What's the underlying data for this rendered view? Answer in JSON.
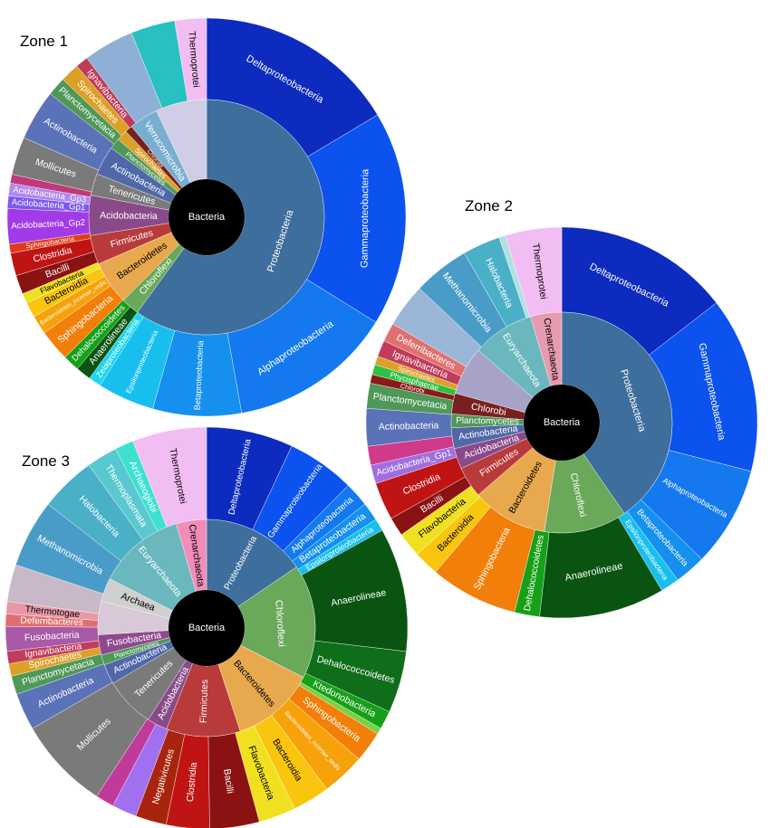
{
  "chart_data": [
    {
      "type": "sunburst",
      "title": "Zone 1",
      "root": "Bacteria",
      "inner": [
        {
          "label": "Proteobacteria",
          "value": 60.0,
          "color": "#3d6e9c"
        },
        {
          "label": "Chloroflexi",
          "value": 2.5,
          "color": "#6aa85a"
        },
        {
          "label": "Bacteroidetes",
          "value": 6.0,
          "color": "#e8a94e"
        },
        {
          "label": "Firmicutes",
          "value": 4.0,
          "color": "#b83a3a"
        },
        {
          "label": "Acidobacteria",
          "value": 5.5,
          "color": "#8a4a8a"
        },
        {
          "label": "Tenericutes",
          "value": 3.0,
          "color": "#7a7a7a"
        },
        {
          "label": "Actinobacteria",
          "value": 4.0,
          "color": "#5068a8"
        },
        {
          "label": "Planctomycetes",
          "value": 1.5,
          "color": "#4f9858"
        },
        {
          "label": "Spirochaetes",
          "value": 1.5,
          "color": "#d9a22a"
        },
        {
          "label": "Chlorobi",
          "value": 1.0,
          "color": "#7a1f1f"
        },
        {
          "label": "Verrucomicrobia",
          "value": 4.0,
          "color": "#7aaed0"
        },
        {
          "label": "",
          "value": 7.0,
          "color": "#d0cde6"
        }
      ],
      "outer": [
        {
          "label": "Deltaproteobacteria",
          "value": 16.0,
          "color": "#0d2bbf"
        },
        {
          "label": "Gammaproteobacteria",
          "value": 17.0,
          "color": "#0b52ee"
        },
        {
          "label": "Alphaproteobacteria",
          "value": 13.0,
          "color": "#1479ef"
        },
        {
          "label": "Betaproteobacteria",
          "value": 7.0,
          "color": "#1590ef"
        },
        {
          "label": "Epsilonproteobacteria",
          "value": 4.5,
          "color": "#18bfee"
        },
        {
          "label": "Zetaproteobacteria",
          "value": 1.0,
          "color": "#1fd6ee"
        },
        {
          "label": "Anaerolineae",
          "value": 1.2,
          "color": "#0a5412"
        },
        {
          "label": "Dehalococcoidetes",
          "value": 1.3,
          "color": "#15a018"
        },
        {
          "label": "Sphingobacteria",
          "value": 2.5,
          "color": "#f27f0a"
        },
        {
          "label": "Bacteroidetes_incertae_sedis",
          "value": 1.5,
          "color": "#f7a20a"
        },
        {
          "label": "Bacteroidia",
          "value": 1.2,
          "color": "#f9c50e"
        },
        {
          "label": "Flavobacteria",
          "value": 0.8,
          "color": "#f0e020"
        },
        {
          "label": "Bacilli",
          "value": 1.5,
          "color": "#8a1212"
        },
        {
          "label": "Clostridia",
          "value": 1.8,
          "color": "#c01414"
        },
        {
          "label": "Sphingobacteria",
          "value": 0.7,
          "color": "#e03a1a"
        },
        {
          "label": "Acidobacteria_Gp2",
          "value": 2.8,
          "color": "#a33ae8"
        },
        {
          "label": "Acidobacteria_Gp1",
          "value": 1.0,
          "color": "#7d59f0"
        },
        {
          "label": "Acidobacteria_Gp3",
          "value": 1.0,
          "color": "#b088ee"
        },
        {
          "label": "",
          "value": 0.7,
          "color": "#c0387a"
        },
        {
          "label": "Mollicutes",
          "value": 3.0,
          "color": "#7a7a7a"
        },
        {
          "label": "Actinobacteria",
          "value": 4.0,
          "color": "#5a72b8"
        },
        {
          "label": "Planctomycetacia",
          "value": 1.5,
          "color": "#4f9858"
        },
        {
          "label": "Spirochaetes",
          "value": 1.5,
          "color": "#dca028"
        },
        {
          "label": "Ignavibacteria",
          "value": 1.0,
          "color": "#c03c5a"
        },
        {
          "label": "",
          "value": 4.0,
          "color": "#8fb0d6"
        },
        {
          "label": "",
          "value": 3.5,
          "color": "#28c0c0"
        },
        {
          "label": "Thermoprotei",
          "value": 2.5,
          "color": "#f2bdf2"
        }
      ]
    },
    {
      "type": "sunburst",
      "title": "Zone 2",
      "root": "Bacteria",
      "inner": [
        {
          "label": "Proteobacteria",
          "value": 40.0,
          "color": "#3d6e9c"
        },
        {
          "label": "Chloroflexi",
          "value": 12.0,
          "color": "#6aa85a"
        },
        {
          "label": "Bacteroidetes",
          "value": 11.0,
          "color": "#e8a94e"
        },
        {
          "label": "Firmicutes",
          "value": 4.5,
          "color": "#b83a3a"
        },
        {
          "label": "Acidobacteria",
          "value": 3.0,
          "color": "#8a4a8a"
        },
        {
          "label": "Actinobacteria",
          "value": 3.0,
          "color": "#5068a8"
        },
        {
          "label": "Planctomycetes",
          "value": 2.0,
          "color": "#4f9858"
        },
        {
          "label": "Chlorobi",
          "value": 3.0,
          "color": "#7a1f1f"
        },
        {
          "label": "",
          "value": 7.0,
          "color": "#a7a3c8"
        },
        {
          "label": "Euryarchaeota",
          "value": 9.0,
          "color": "#6ab8be"
        },
        {
          "label": "Crenarchaeota",
          "value": 4.5,
          "color": "#e79ab0"
        }
      ],
      "outer": [
        {
          "label": "Deltaproteobacteria",
          "value": 14.0,
          "color": "#0d2bbf"
        },
        {
          "label": "Gammaproteobacteria",
          "value": 14.0,
          "color": "#0b52ee"
        },
        {
          "label": "Alphaproteobacteria",
          "value": 8.0,
          "color": "#1479ef"
        },
        {
          "label": "Betaproteobacteria",
          "value": 2.5,
          "color": "#1590ef"
        },
        {
          "label": "Epsilonproteobacteria",
          "value": 1.5,
          "color": "#18bfee"
        },
        {
          "label": "Anaerolineae",
          "value": 10.0,
          "color": "#0a5412"
        },
        {
          "label": "Dehalococcoidetes",
          "value": 2.0,
          "color": "#15a018"
        },
        {
          "label": "Sphingobacteria",
          "value": 7.0,
          "color": "#f27f0a"
        },
        {
          "label": "Bacteroidia",
          "value": 2.0,
          "color": "#f9c50e"
        },
        {
          "label": "Flavobacteria",
          "value": 2.0,
          "color": "#f0e020"
        },
        {
          "label": "Bacilli",
          "value": 1.5,
          "color": "#8a1212"
        },
        {
          "label": "Clostridia",
          "value": 3.0,
          "color": "#c01414"
        },
        {
          "label": "Acidobacteria_Gp1",
          "value": 1.5,
          "color": "#a06ee0"
        },
        {
          "label": "",
          "value": 1.5,
          "color": "#d03a8a"
        },
        {
          "label": "Actinobacteria",
          "value": 3.0,
          "color": "#5a72b8"
        },
        {
          "label": "Planctomycetacia",
          "value": 2.0,
          "color": "#4f9858"
        },
        {
          "label": "Chlorobi",
          "value": 0.7,
          "color": "#8a1a1a"
        },
        {
          "label": "Phycisphaerae",
          "value": 0.8,
          "color": "#2ec040"
        },
        {
          "label": "Spirochaetes",
          "value": 0.7,
          "color": "#dca028"
        },
        {
          "label": "Ignavibacteria",
          "value": 1.3,
          "color": "#c03c5a"
        },
        {
          "label": "Deferribacteres",
          "value": 1.5,
          "color": "#e07070"
        },
        {
          "label": "",
          "value": 3.5,
          "color": "#9cb6d8"
        },
        {
          "label": "Methanomicrobia",
          "value": 4.5,
          "color": "#4a9cc8"
        },
        {
          "label": "Halobacteria",
          "value": 3.0,
          "color": "#4ab0c8"
        },
        {
          "label": "",
          "value": 0.5,
          "color": "#b0e0e0"
        },
        {
          "label": "Thermoprotei",
          "value": 4.5,
          "color": "#f2bdf2"
        }
      ]
    },
    {
      "type": "sunburst",
      "title": "Zone 3",
      "root": "Bacteria",
      "inner": [
        {
          "label": "Proteobacteria",
          "value": 15.5,
          "color": "#3d6e9c"
        },
        {
          "label": "Chloroflexi",
          "value": 17.0,
          "color": "#6aa85a"
        },
        {
          "label": "Bacteroidetes",
          "value": 12.5,
          "color": "#e8a94e"
        },
        {
          "label": "Firmicutes",
          "value": 11.0,
          "color": "#b83a3a"
        },
        {
          "label": "Acidobacteria",
          "value": 3.0,
          "color": "#8a4a8a"
        },
        {
          "label": "Tenericutes",
          "value": 7.5,
          "color": "#7a7a7a"
        },
        {
          "label": "Actinobacteria",
          "value": 3.0,
          "color": "#5068a8"
        },
        {
          "label": "Planctomycetes",
          "value": 1.5,
          "color": "#4f9858"
        },
        {
          "label": "Fusobacteria",
          "value": 3.0,
          "color": "#8e4a8e"
        },
        {
          "label": "",
          "value": 5.0,
          "color": "#d8c8d8"
        },
        {
          "label": "Archaea",
          "value": 3.5,
          "color": "#cfcfcf"
        },
        {
          "label": "Euryarchaeota",
          "value": 13.0,
          "color": "#6ab8be"
        },
        {
          "label": "Crenarchaeota",
          "value": 4.5,
          "color": "#f08eb8"
        }
      ],
      "outer": [
        {
          "label": "Deltaproteobacteria",
          "value": 7.0,
          "color": "#0d2bbf"
        },
        {
          "label": "Gammaproteobacteria",
          "value": 5.5,
          "color": "#0b52ee"
        },
        {
          "label": "Alphaproteobacteria",
          "value": 2.0,
          "color": "#1479ef"
        },
        {
          "label": "Betaproteobacteria",
          "value": 1.5,
          "color": "#1590ef"
        },
        {
          "label": "Epsilonproteobacteria",
          "value": 1.0,
          "color": "#18bfee"
        },
        {
          "label": "Anaerolineae",
          "value": 10.0,
          "color": "#0a5412"
        },
        {
          "label": "Dehalococcoidetes",
          "value": 5.0,
          "color": "#0f6e1a"
        },
        {
          "label": "Ktedonobacteria",
          "value": 1.5,
          "color": "#15a018"
        },
        {
          "label": "",
          "value": 0.5,
          "color": "#7ad046"
        },
        {
          "label": "Sphingobacteria",
          "value": 2.5,
          "color": "#f27f0a"
        },
        {
          "label": "Bacteroidetes_incertae_sedis",
          "value": 3.5,
          "color": "#f7a20a"
        },
        {
          "label": "Bacteroidia",
          "value": 3.0,
          "color": "#f9c50e"
        },
        {
          "label": "Flavobacteria",
          "value": 3.0,
          "color": "#f0e020"
        },
        {
          "label": "Bacilli",
          "value": 4.0,
          "color": "#8a1212"
        },
        {
          "label": "Clostridia",
          "value": 3.5,
          "color": "#c01414"
        },
        {
          "label": "Negativicutes",
          "value": 2.5,
          "color": "#a8240c"
        },
        {
          "label": "",
          "value": 2.0,
          "color": "#a070f0"
        },
        {
          "label": "",
          "value": 1.5,
          "color": "#c03a9a"
        },
        {
          "label": "Mollicutes",
          "value": 7.5,
          "color": "#7a7a7a"
        },
        {
          "label": "Actinobacteria",
          "value": 3.0,
          "color": "#5a72b8"
        },
        {
          "label": "Planctomycetacia",
          "value": 1.5,
          "color": "#4f9858"
        },
        {
          "label": "Spirochaetes",
          "value": 1.0,
          "color": "#dca028"
        },
        {
          "label": "Ignavibacteria",
          "value": 1.0,
          "color": "#c03c5a"
        },
        {
          "label": "Fusobacteria",
          "value": 2.0,
          "color": "#a85aa8"
        },
        {
          "label": "Deferribacteres",
          "value": 1.0,
          "color": "#e07070"
        },
        {
          "label": "Thermotogae",
          "value": 1.0,
          "color": "#e898a8"
        },
        {
          "label": "",
          "value": 3.0,
          "color": "#c8b8c8"
        },
        {
          "label": "Methanomicrobia",
          "value": 5.5,
          "color": "#4a9cc8"
        },
        {
          "label": "Halobacteria",
          "value": 4.5,
          "color": "#4ab0c8"
        },
        {
          "label": "Thermoplasmata",
          "value": 2.5,
          "color": "#5ac8d0"
        },
        {
          "label": "Archaeoglobi",
          "value": 1.5,
          "color": "#3ee0d0"
        },
        {
          "label": "Thermoprotei",
          "value": 6.0,
          "color": "#f2bdf2"
        }
      ]
    }
  ]
}
